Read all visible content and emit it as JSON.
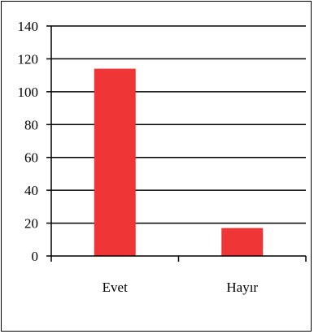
{
  "chart_data": {
    "type": "bar",
    "categories": [
      "Evet",
      "Hayır"
    ],
    "values": [
      114,
      17
    ],
    "ylim": [
      0,
      140
    ],
    "yticks": [
      0,
      20,
      40,
      60,
      80,
      100,
      120,
      140
    ],
    "grid": true,
    "colors": {
      "bar": "#ef3535",
      "axis": "#000000",
      "grid": "#000000"
    }
  }
}
